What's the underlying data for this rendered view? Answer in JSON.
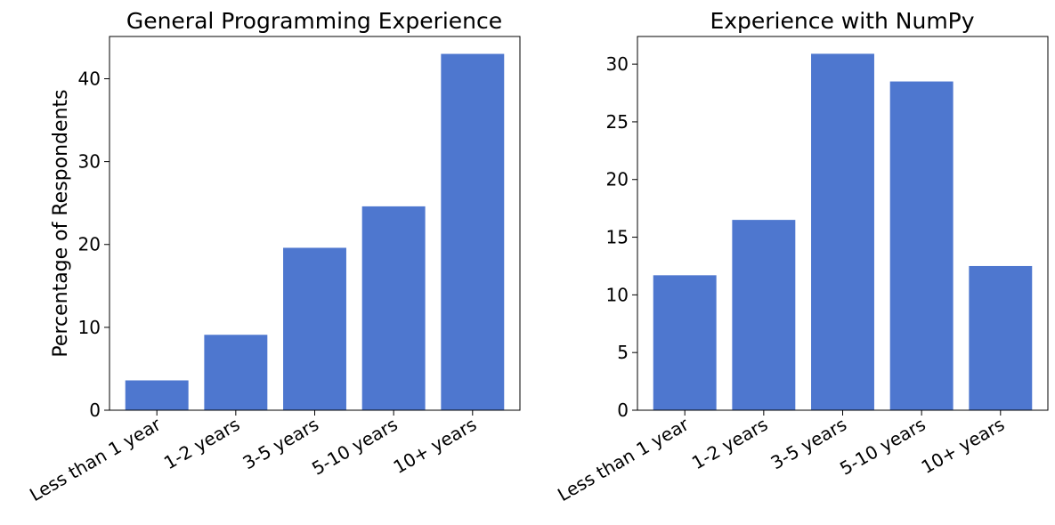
{
  "chart_data": [
    {
      "type": "bar",
      "title": "General Programming Experience",
      "xlabel": "",
      "ylabel": "Percentage of Respondents",
      "categories": [
        "Less than 1 year",
        "1-2 years",
        "3-5 years",
        "5-10 years",
        "10+ years"
      ],
      "values": [
        3.6,
        9.1,
        19.6,
        24.6,
        43.0
      ],
      "ylim": [
        0,
        45.1
      ],
      "yticks": [
        0,
        10,
        20,
        30,
        40
      ],
      "grid": false,
      "color": "#4e77cf"
    },
    {
      "type": "bar",
      "title": "Experience with NumPy",
      "xlabel": "",
      "ylabel": "",
      "categories": [
        "Less than 1 year",
        "1-2 years",
        "3-5 years",
        "5-10 years",
        "10+ years"
      ],
      "values": [
        11.7,
        16.5,
        30.9,
        28.5,
        12.5
      ],
      "ylim": [
        0,
        32.4
      ],
      "yticks": [
        0,
        5,
        10,
        15,
        20,
        25,
        30
      ],
      "grid": false,
      "color": "#4e77cf"
    }
  ]
}
